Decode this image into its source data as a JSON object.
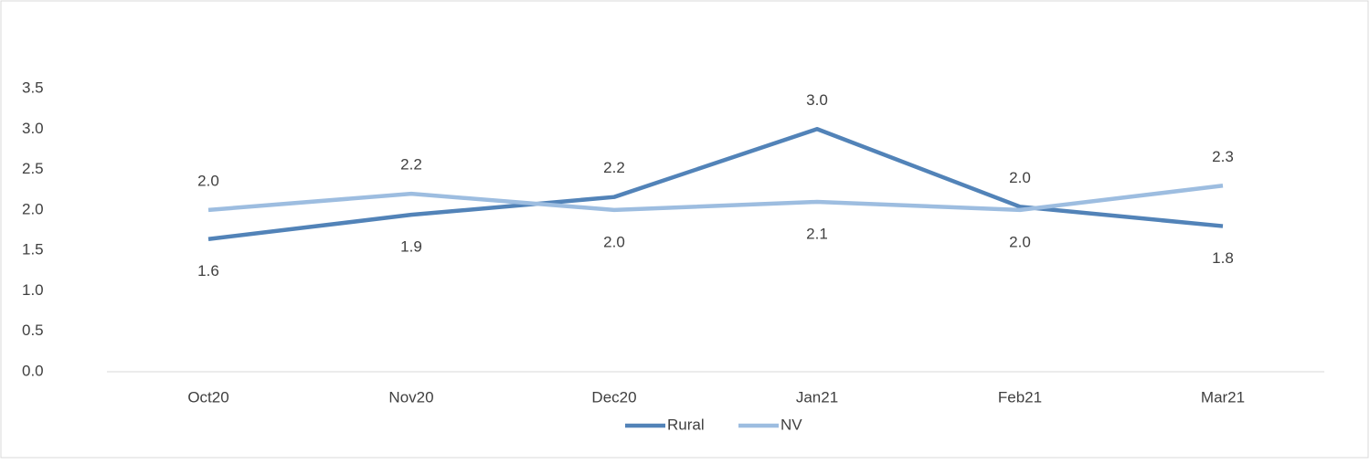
{
  "chart_data": {
    "type": "line",
    "categories": [
      "Oct20",
      "Nov20",
      "Dec20",
      "Jan21",
      "Feb21",
      "Mar21"
    ],
    "series": [
      {
        "name": "Rural",
        "color": "#5283b8",
        "values": [
          1.64,
          1.94,
          2.16,
          3.0,
          2.04,
          1.8
        ],
        "value_labels": [
          "1.6",
          "1.9",
          "2.2",
          "3.0",
          "2.0",
          "1.8"
        ]
      },
      {
        "name": "NV",
        "color": "#9dbde0",
        "values": [
          2.0,
          2.2,
          2.0,
          2.1,
          2.0,
          2.3
        ],
        "value_labels": [
          "2.0",
          "2.2",
          "2.0",
          "2.1",
          "2.0",
          "2.3"
        ]
      }
    ],
    "ylim": [
      0,
      3.5
    ],
    "yticks": [
      {
        "value": 0,
        "label": "0.0"
      },
      {
        "value": 0.5,
        "label": "0.5"
      },
      {
        "value": 1,
        "label": "1.0"
      },
      {
        "value": 1.5,
        "label": "1.5"
      },
      {
        "value": 2,
        "label": "2.0"
      },
      {
        "value": 2.5,
        "label": "2.5"
      },
      {
        "value": 3,
        "label": "3.0"
      },
      {
        "value": 3.5,
        "label": "3.5"
      }
    ],
    "grid": false,
    "legend": "bottom"
  }
}
